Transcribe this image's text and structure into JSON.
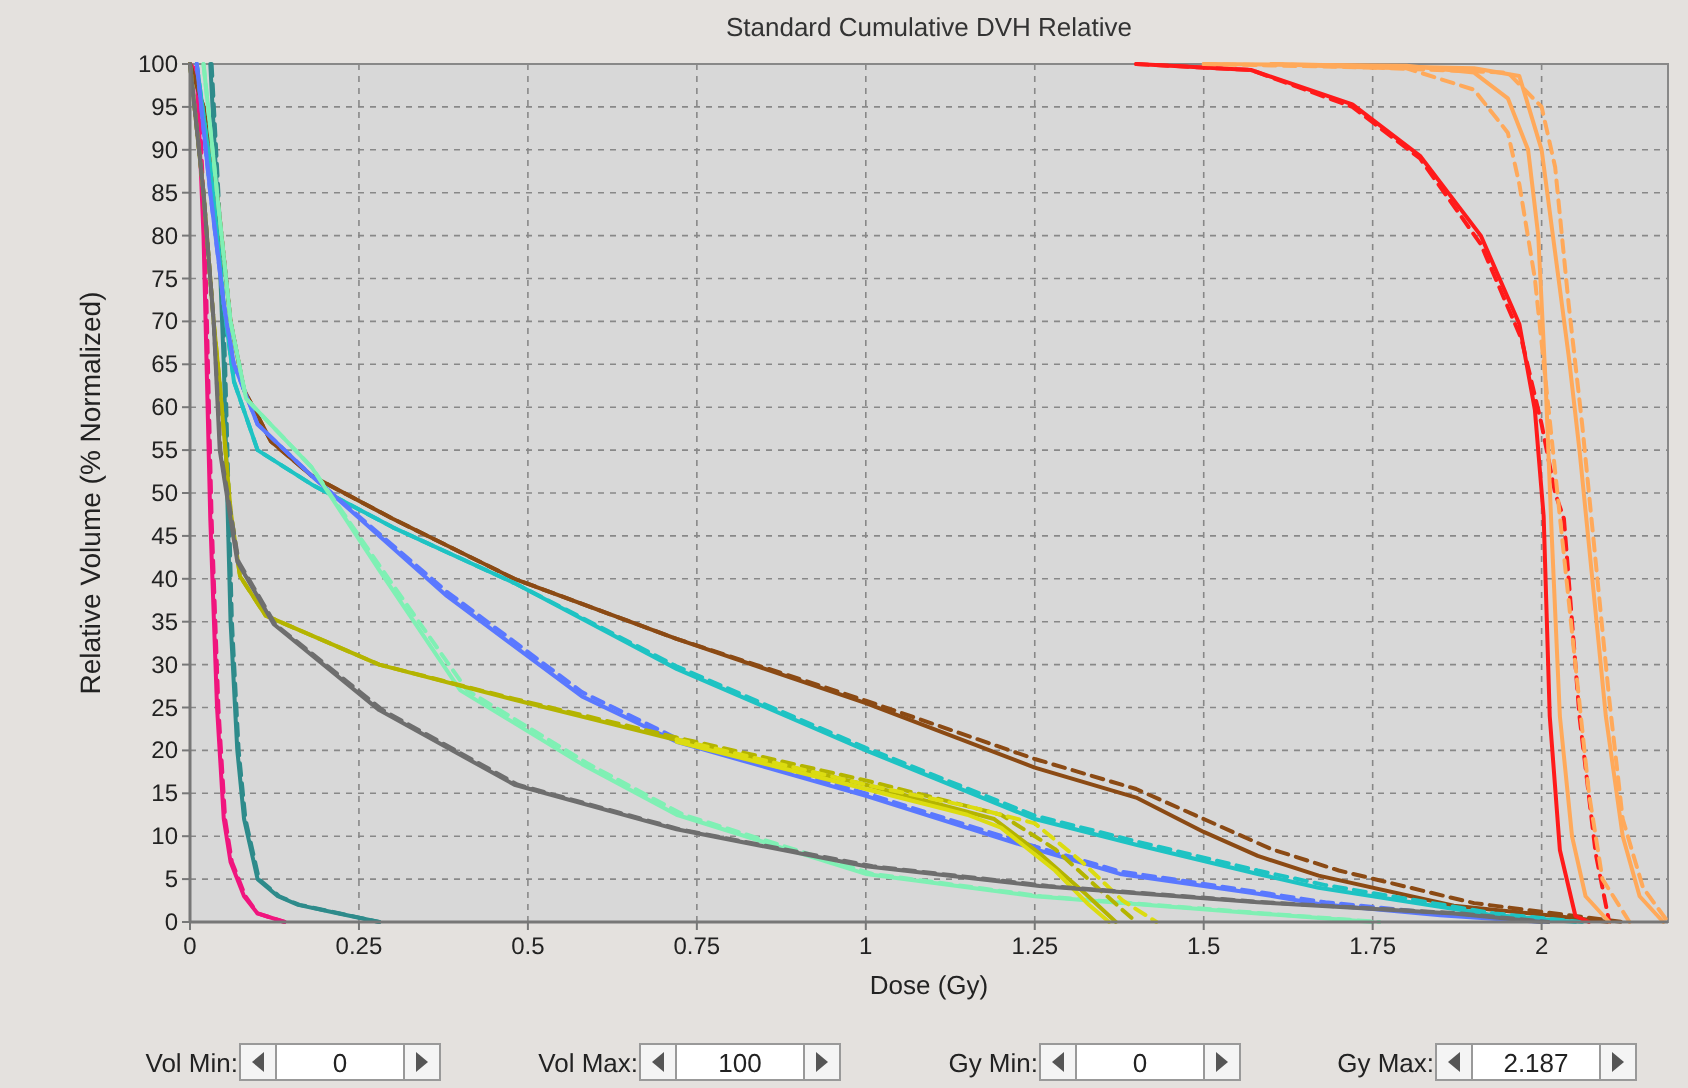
{
  "chart_data": {
    "type": "line",
    "title": "Standard Cumulative DVH Relative",
    "xlabel": "Dose (Gy)",
    "ylabel": "Relative Volume (% Normalized)",
    "xlim": [
      0,
      2.187
    ],
    "ylim": [
      0,
      100
    ],
    "xticks": [
      0,
      0.25,
      0.5,
      0.75,
      1,
      1.25,
      1.5,
      1.75,
      2
    ],
    "yticks": [
      0,
      5,
      10,
      15,
      20,
      25,
      30,
      35,
      40,
      45,
      50,
      55,
      60,
      65,
      70,
      75,
      80,
      85,
      90,
      95,
      100
    ],
    "grid": true,
    "marker": "none",
    "annotations": [
      "Vol Min:",
      "0",
      "Vol Max:",
      "100",
      "Gy Min:",
      "0",
      "Gy Max:",
      "2.187"
    ],
    "series": [
      {
        "color": "#f0157e",
        "line_style": "solid",
        "x": [
          0,
          0.01,
          0.02,
          0.03,
          0.04,
          0.05,
          0.06,
          0.08,
          0.1,
          0.14
        ],
        "values": [
          100,
          99,
          80,
          47,
          25,
          12,
          7,
          3,
          1,
          0
        ]
      },
      {
        "color": "#f0157e",
        "line_style": "dashed",
        "x": [
          0,
          0.012,
          0.022,
          0.032,
          0.042,
          0.052,
          0.062,
          0.082,
          0.1,
          0.14
        ],
        "values": [
          100,
          99,
          80,
          47,
          25,
          12,
          7,
          3,
          1,
          0
        ]
      },
      {
        "color": "#2e8b8b",
        "line_style": "solid",
        "x": [
          0.03,
          0.04,
          0.05,
          0.055,
          0.06,
          0.07,
          0.08,
          0.1,
          0.13,
          0.16,
          0.22,
          0.28
        ],
        "values": [
          100,
          85,
          65,
          50,
          35,
          20,
          12,
          5,
          3,
          2,
          1,
          0
        ]
      },
      {
        "color": "#2e8b8b",
        "line_style": "dashed",
        "x": [
          0.032,
          0.042,
          0.052,
          0.057,
          0.062,
          0.072,
          0.082,
          0.102,
          0.132,
          0.162,
          0.222,
          0.28
        ],
        "values": [
          100,
          85,
          65,
          50,
          35,
          20,
          12,
          5,
          3,
          2,
          1,
          0
        ]
      },
      {
        "color": "#8b4a14",
        "line_style": "solid",
        "x": [
          0,
          0.02,
          0.04,
          0.06,
          0.08,
          0.12,
          0.18,
          0.3,
          0.48,
          0.72,
          1,
          1.25,
          1.4,
          1.5,
          1.58,
          1.67,
          1.87,
          2.02,
          2.1
        ],
        "values": [
          100,
          95,
          85,
          70,
          62,
          56,
          52,
          47,
          40,
          33,
          25.5,
          18,
          14.5,
          10.5,
          7.7,
          5.4,
          1.9,
          0.7,
          0
        ]
      },
      {
        "color": "#8b4a14",
        "line_style": "dashed",
        "x": [
          0,
          0.02,
          0.04,
          0.06,
          0.08,
          0.12,
          0.18,
          0.3,
          0.48,
          0.72,
          1,
          1.25,
          1.4,
          1.5,
          1.6,
          1.7,
          1.9,
          2.04,
          2.12
        ],
        "values": [
          100,
          95,
          85,
          70,
          62,
          56,
          52,
          47,
          40,
          33,
          25.8,
          19,
          15.5,
          12,
          8.5,
          6,
          2.2,
          0.8,
          0
        ]
      },
      {
        "color": "#1ec3c3",
        "line_style": "solid",
        "x": [
          0.01,
          0.03,
          0.05,
          0.065,
          0.1,
          0.18,
          0.3,
          0.48,
          0.72,
          1,
          1.25,
          1.4,
          1.58,
          1.67,
          1.92,
          2.05
        ],
        "values": [
          100,
          88,
          72,
          63,
          55,
          51,
          46,
          39.5,
          29.5,
          20,
          12,
          9,
          5.6,
          4,
          0.9,
          0
        ]
      },
      {
        "color": "#1ec3c3",
        "line_style": "dashed",
        "x": [
          0.01,
          0.03,
          0.05,
          0.065,
          0.1,
          0.18,
          0.3,
          0.48,
          0.72,
          1,
          1.25,
          1.4,
          1.58,
          1.68,
          1.93,
          2.06
        ],
        "values": [
          100,
          88,
          72,
          63,
          55,
          51,
          46,
          39.5,
          29.8,
          20.3,
          12.4,
          9.4,
          6,
          4.3,
          1,
          0
        ]
      },
      {
        "color": "#5a78ff",
        "line_style": "solid",
        "x": [
          0.01,
          0.03,
          0.05,
          0.065,
          0.1,
          0.18,
          0.38,
          0.58,
          0.72,
          1,
          1.25,
          1.376,
          1.58,
          1.67,
          1.85,
          2
        ],
        "values": [
          100,
          85,
          72,
          65,
          58,
          52,
          38,
          26.3,
          21,
          14.7,
          8.5,
          5.6,
          3.3,
          2.1,
          0.8,
          0
        ]
      },
      {
        "color": "#5a78ff",
        "line_style": "dashed",
        "x": [
          0.01,
          0.03,
          0.05,
          0.065,
          0.1,
          0.18,
          0.38,
          0.58,
          0.72,
          1,
          1.25,
          1.376,
          1.58,
          1.68,
          1.86,
          2.01
        ],
        "values": [
          100,
          85,
          72,
          65,
          58,
          52,
          38.5,
          26.8,
          21.4,
          15,
          8.8,
          5.9,
          3.5,
          2.3,
          0.9,
          0
        ]
      },
      {
        "color": "#7ff0b4",
        "line_style": "solid",
        "x": [
          0.02,
          0.04,
          0.06,
          0.083,
          0.18,
          0.28,
          0.4,
          0.58,
          0.72,
          1,
          1.25,
          1.58,
          1.75
        ],
        "values": [
          100,
          85,
          70,
          61,
          53,
          41,
          27,
          18.4,
          12.5,
          5.6,
          3,
          1,
          0
        ]
      },
      {
        "color": "#7ff0b4",
        "line_style": "dashed",
        "x": [
          0.02,
          0.04,
          0.06,
          0.083,
          0.18,
          0.285,
          0.41,
          0.59,
          0.73,
          1.01,
          1.26,
          1.59,
          1.76
        ],
        "values": [
          100,
          85,
          70,
          61,
          53,
          41,
          27,
          18.4,
          12.5,
          5.6,
          3,
          1,
          0
        ]
      },
      {
        "color": "#b4b400",
        "line_style": "solid",
        "x": [
          0,
          0.02,
          0.035,
          0.044,
          0.06,
          0.074,
          0.112,
          0.28,
          0.48,
          0.72,
          1,
          1.19,
          1.257,
          1.325,
          1.37
        ],
        "values": [
          100,
          85,
          70,
          62.7,
          48,
          40.3,
          35.7,
          30,
          25.9,
          21.2,
          16,
          12,
          8,
          3.3,
          0
        ]
      },
      {
        "color": "#b4b400",
        "line_style": "dashed",
        "x": [
          0,
          0.02,
          0.035,
          0.044,
          0.06,
          0.074,
          0.112,
          0.28,
          0.48,
          0.72,
          1,
          1.2,
          1.28,
          1.35,
          1.4
        ],
        "values": [
          100,
          85,
          70,
          62.7,
          48,
          40.3,
          35.7,
          30,
          26,
          21.5,
          16.5,
          12.5,
          8.5,
          3.5,
          0
        ]
      },
      {
        "color": "#dcdc10",
        "line_style": "solid",
        "x": [
          0.72,
          1,
          1.15,
          1.2,
          1.28,
          1.33,
          1.36
        ],
        "values": [
          21,
          15.5,
          12.5,
          11,
          6,
          2,
          0
        ]
      },
      {
        "color": "#dcdc10",
        "line_style": "dashed",
        "x": [
          0.72,
          1,
          1.15,
          1.25,
          1.32,
          1.38,
          1.43
        ],
        "values": [
          21.3,
          16,
          13.5,
          11.5,
          7,
          2.5,
          0
        ]
      },
      {
        "color": "#6e6e6e",
        "line_style": "solid",
        "x": [
          0,
          0.02,
          0.035,
          0.044,
          0.07,
          0.124,
          0.28,
          0.48,
          0.72,
          1,
          1.257,
          1.58,
          1.87,
          2
        ],
        "values": [
          100,
          85,
          70,
          55,
          42,
          34.7,
          24.7,
          16,
          10.8,
          6.5,
          4.2,
          2.3,
          1,
          0
        ]
      },
      {
        "color": "#6e6e6e",
        "line_style": "dashed",
        "x": [
          0,
          0.02,
          0.035,
          0.045,
          0.072,
          0.126,
          0.285,
          0.485,
          0.725,
          1.01,
          1.27,
          1.59,
          1.88,
          2.01
        ],
        "values": [
          100,
          85,
          70,
          55,
          42,
          34.7,
          24.7,
          16,
          10.8,
          6.5,
          4.2,
          2.3,
          1,
          0
        ]
      },
      {
        "color": "#ff1a1a",
        "line_style": "solid",
        "x": [
          1.4,
          1.57,
          1.72,
          1.82,
          1.91,
          1.967,
          1.99,
          2.003,
          2.012,
          2.027,
          2.05,
          2.07
        ],
        "values": [
          100,
          99.3,
          95.3,
          89.3,
          80,
          69.7,
          59.7,
          47.3,
          24,
          8.4,
          0.7,
          0
        ]
      },
      {
        "color": "#ff1a1a",
        "line_style": "dashed",
        "x": [
          1.4,
          1.57,
          1.72,
          1.82,
          1.91,
          1.97,
          2,
          2.02,
          2.033,
          2.056,
          2.08,
          2.1
        ],
        "values": [
          100,
          99.3,
          95,
          89,
          79,
          68,
          58,
          50,
          47,
          24,
          8,
          0
        ]
      },
      {
        "color": "#ffa95a",
        "line_style": "solid",
        "x": [
          1.5,
          1.8,
          1.9,
          1.95,
          1.98,
          1.995,
          2.006,
          2.015,
          2.027,
          2.045,
          2.065,
          2.1
        ],
        "values": [
          100,
          99.8,
          99,
          96,
          90,
          80,
          62.7,
          45,
          24,
          10,
          3,
          0
        ]
      },
      {
        "color": "#ffa95a",
        "line_style": "solid",
        "x": [
          1.6,
          1.9,
          1.967,
          2,
          2.02,
          2.04,
          2.056,
          2.075,
          2.095,
          2.12,
          2.145,
          2.18
        ],
        "values": [
          100,
          99.5,
          98.6,
          90,
          78,
          66,
          55,
          40,
          24,
          10,
          3,
          0
        ]
      },
      {
        "color": "#ffa95a",
        "line_style": "dashed",
        "x": [
          1.5,
          1.8,
          1.9,
          1.95,
          1.967,
          1.99,
          2.01,
          2.03,
          2.05,
          2.07,
          2.09,
          2.13
        ],
        "values": [
          100,
          99.5,
          97,
          92,
          86,
          75,
          60,
          45,
          30,
          15,
          5,
          0
        ]
      },
      {
        "color": "#ffa95a",
        "line_style": "dashed",
        "x": [
          1.6,
          1.95,
          2,
          2.02,
          2.04,
          2.06,
          2.08,
          2.1,
          2.12,
          2.15,
          2.187
        ],
        "values": [
          100,
          99,
          95,
          88,
          72,
          58,
          42,
          26,
          12,
          4,
          0
        ]
      }
    ]
  }
}
